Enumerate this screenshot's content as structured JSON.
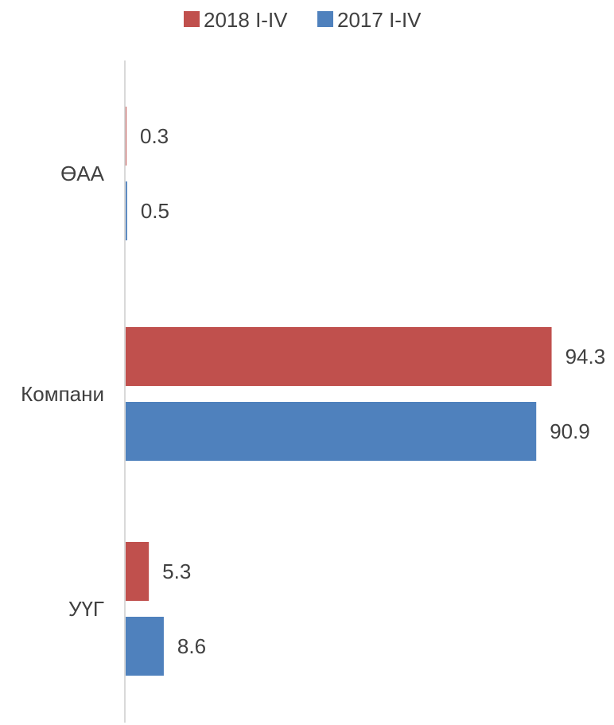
{
  "chart_data": {
    "type": "bar",
    "orientation": "horizontal",
    "categories": [
      "ӨАА",
      "Компани",
      "УҮГ"
    ],
    "series": [
      {
        "name": "2018 I-IV",
        "color": "#c0504d",
        "values": [
          0.3,
          94.3,
          5.3
        ]
      },
      {
        "name": "2017 I-IV",
        "color": "#4f81bd",
        "values": [
          0.5,
          90.9,
          8.6
        ]
      }
    ],
    "data_labels": {
      "2018 I-IV": [
        "0.3",
        "94.3",
        "5.3"
      ],
      "2017 I-IV": [
        "0.5",
        "90.9",
        "8.6"
      ]
    },
    "xlim": [
      0,
      100
    ],
    "legend": "top",
    "grid": false,
    "axis_color": "#d9d9d9"
  }
}
